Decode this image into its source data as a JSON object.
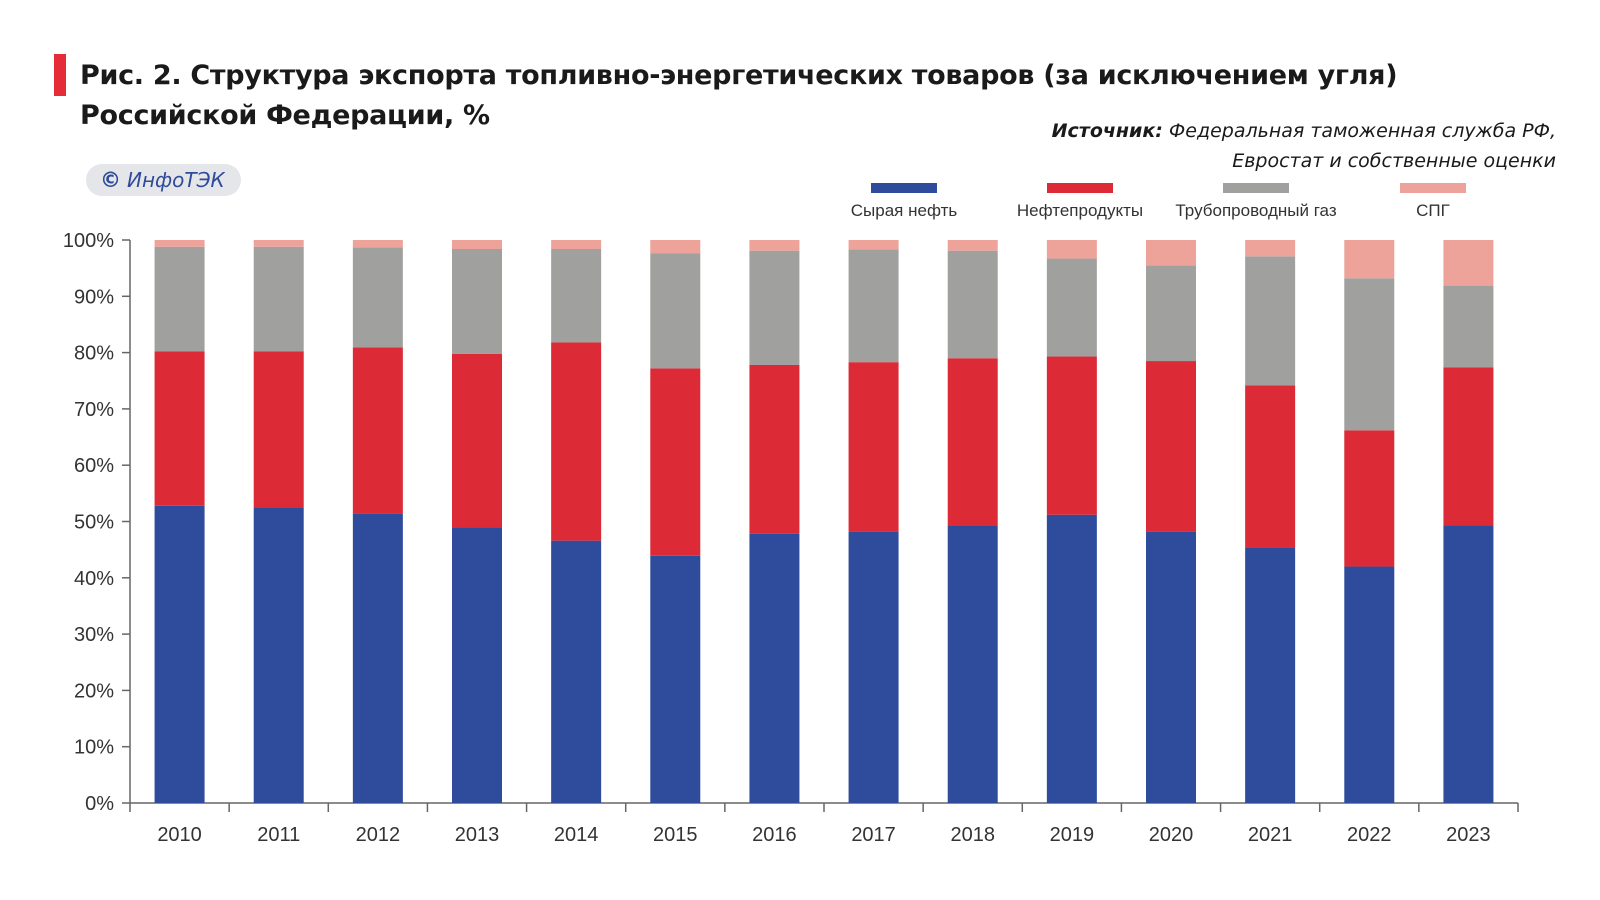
{
  "header": {
    "title": "Рис. 2. Структура экспорта топливно-энергетических товаров (за исключением угля) Российской Федерации, %",
    "source_label": "Источник:",
    "source_line1": "Федеральная таможенная служба РФ,",
    "source_line2": "Евростат и собственные оценки",
    "badge_symbol": "©",
    "badge_text": "ИнфоТЭК",
    "accent_color": "#e52d3a"
  },
  "chart_data": {
    "type": "bar",
    "stacked": true,
    "title": "Рис. 2. Структура экспорта топливно-энергетических товаров (за исключением угля) Российской Федерации, %",
    "xlabel": "",
    "ylabel": "",
    "ylim": [
      0,
      100
    ],
    "y_ticks": [
      "0%",
      "10%",
      "20%",
      "30%",
      "40%",
      "50%",
      "60%",
      "70%",
      "80%",
      "90%",
      "100%"
    ],
    "grid": false,
    "legend_position": "top-right",
    "categories": [
      "2010",
      "2011",
      "2012",
      "2013",
      "2014",
      "2015",
      "2016",
      "2017",
      "2018",
      "2019",
      "2020",
      "2021",
      "2022",
      "2023"
    ],
    "series": [
      {
        "name": "Сырая нефть",
        "color": "#2f4b9b",
        "values": [
          52.8,
          52.5,
          51.4,
          49.0,
          46.6,
          43.9,
          47.8,
          48.2,
          49.2,
          51.2,
          48.2,
          45.4,
          42.0,
          49.3
        ]
      },
      {
        "name": "Нефтепродукты",
        "color": "#dd2a37",
        "values": [
          27.4,
          27.7,
          29.5,
          30.8,
          35.2,
          33.3,
          30.0,
          30.1,
          29.8,
          28.1,
          30.3,
          28.8,
          24.2,
          28.1
        ]
      },
      {
        "name": "Трубопроводный газ",
        "color": "#a0a09e",
        "values": [
          18.6,
          18.6,
          17.8,
          18.6,
          16.6,
          20.4,
          20.3,
          20.0,
          19.1,
          17.4,
          17.0,
          22.9,
          27.0,
          14.5
        ]
      },
      {
        "name": "СПГ",
        "color": "#eda39a",
        "values": [
          1.2,
          1.2,
          1.3,
          1.6,
          1.6,
          2.4,
          1.9,
          1.7,
          1.9,
          3.3,
          4.5,
          2.9,
          6.8,
          8.1
        ]
      }
    ]
  }
}
